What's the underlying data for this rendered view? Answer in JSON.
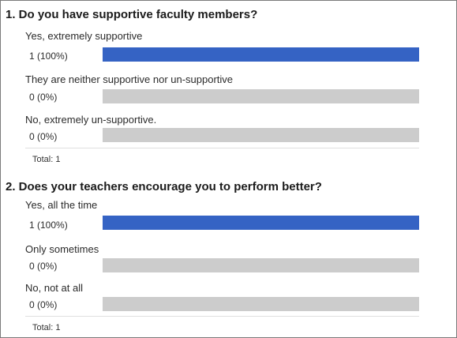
{
  "questions": [
    {
      "title": "1. Do you have supportive faculty members?",
      "options": [
        {
          "label": "Yes, extremely supportive",
          "count": "1 (100%)",
          "fraction": 1.0
        },
        {
          "label": "They are neither supportive nor un-supportive",
          "count": "0 (0%)",
          "fraction": 0.0
        },
        {
          "label": "No, extremely un-supportive.",
          "count": "0 (0%)",
          "fraction": 0.0
        }
      ],
      "total": "Total: 1"
    },
    {
      "title": "2. Does your teachers encourage you to perform better?",
      "options": [
        {
          "label": "Yes, all the time",
          "count": "1 (100%)",
          "fraction": 1.0
        },
        {
          "label": "Only sometimes",
          "count": "0 (0%)",
          "fraction": 0.0
        },
        {
          "label": "No, not at all",
          "count": "0 (0%)",
          "fraction": 0.0
        }
      ],
      "total": "Total: 1"
    }
  ],
  "colors": {
    "bar_fill": "#3563c4",
    "bar_track": "#cccccc"
  }
}
